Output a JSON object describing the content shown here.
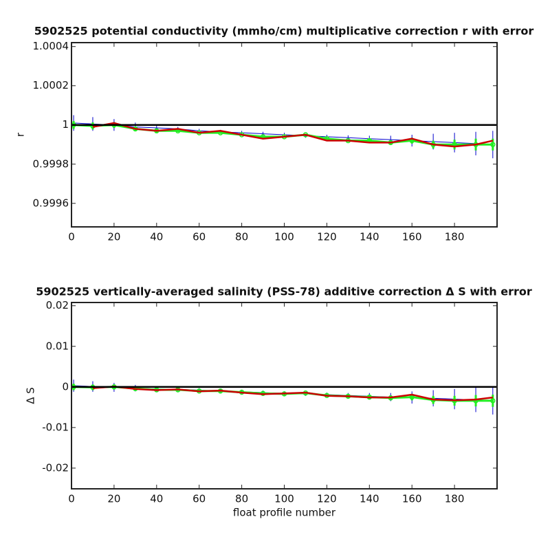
{
  "chart_data": [
    {
      "type": "errorbar",
      "title": "5902525 potential conductivity (mmho/cm) multiplicative correction r with error",
      "ylabel": "r",
      "x": [
        1,
        10,
        20,
        30,
        40,
        50,
        60,
        70,
        80,
        90,
        100,
        110,
        120,
        130,
        140,
        150,
        160,
        170,
        180,
        190,
        198
      ],
      "xlim": [
        0,
        200
      ],
      "xticks": [
        0,
        20,
        40,
        60,
        80,
        100,
        120,
        140,
        160,
        180
      ],
      "ylim": [
        0.99948,
        1.00042
      ],
      "yticks": [
        1.0004,
        1.0002,
        1,
        0.9998,
        0.9996
      ],
      "reference_line": {
        "value": 1,
        "color": "#000000"
      },
      "series": [
        {
          "color": "#0000cc",
          "values": [
            1.00001,
            1.000005,
            1.0,
            0.99999,
            0.999985,
            0.99998,
            0.99997,
            0.999965,
            0.99996,
            0.999955,
            0.99995,
            0.999945,
            0.99994,
            0.999935,
            0.99993,
            0.999925,
            0.99992,
            0.999915,
            0.99991,
            0.999905,
            0.9999
          ],
          "errors": [
            4e-05,
            3.5e-05,
            3e-05,
            2.2e-05,
            1.5e-05,
            1e-05,
            1e-05,
            1e-05,
            1e-05,
            1e-05,
            1e-05,
            1e-05,
            1e-05,
            1.2e-05,
            1.5e-05,
            2e-05,
            3e-05,
            4e-05,
            5e-05,
            6e-05,
            7e-05
          ]
        },
        {
          "color": "#22ee22",
          "values": [
            1.0,
            0.999995,
            1.0,
            0.99998,
            0.99997,
            0.99997,
            0.99996,
            0.99996,
            0.99995,
            0.99994,
            0.99994,
            0.99995,
            0.99993,
            0.99992,
            0.99992,
            0.99991,
            0.99992,
            0.9999,
            0.9999,
            0.9999,
            0.9999
          ],
          "errors": [
            2e-05,
            1.8e-05,
            1.5e-05,
            1e-05,
            8e-06,
            6e-06,
            5e-06,
            5e-06,
            5e-06,
            5e-06,
            5e-06,
            5e-06,
            5e-06,
            6e-06,
            8e-06,
            1e-05,
            1.5e-05,
            2e-05,
            2.5e-05,
            3e-05,
            3e-05
          ]
        },
        {
          "color": "#cc0000",
          "values": [
            null,
            0.99999,
            1.00001,
            0.99998,
            0.99997,
            0.99998,
            0.99996,
            0.99997,
            0.99995,
            0.99993,
            0.99994,
            0.99995,
            0.99992,
            0.99992,
            0.99991,
            0.99991,
            0.99993,
            0.9999,
            0.99989,
            0.9999,
            0.99992
          ]
        }
      ]
    },
    {
      "type": "errorbar",
      "title": "5902525 vertically-averaged salinity (PSS-78) additive correction Δ S with error",
      "ylabel": "Δ S",
      "xlabel": "float profile number",
      "x": [
        1,
        10,
        20,
        30,
        40,
        50,
        60,
        70,
        80,
        90,
        100,
        110,
        120,
        130,
        140,
        150,
        160,
        170,
        180,
        190,
        198
      ],
      "xlim": [
        0,
        200
      ],
      "xticks": [
        0,
        20,
        40,
        60,
        80,
        100,
        120,
        140,
        160,
        180
      ],
      "ylim": [
        -0.0251,
        0.0208
      ],
      "yticks": [
        0.02,
        0.01,
        0,
        -0.01,
        -0.02
      ],
      "reference_line": {
        "value": 0,
        "color": "#000000"
      },
      "series": [
        {
          "color": "#0000cc",
          "values": [
            0.0003,
            0.0001,
            -0.0001,
            -0.0003,
            -0.0005,
            -0.0006,
            -0.0008,
            -0.001,
            -0.0012,
            -0.0014,
            -0.0016,
            -0.0017,
            -0.0019,
            -0.0021,
            -0.0023,
            -0.0025,
            -0.0026,
            -0.0028,
            -0.003,
            -0.0032,
            -0.0033
          ],
          "errors": [
            0.0015,
            0.0013,
            0.0011,
            0.0008,
            0.0006,
            0.0005,
            0.0005,
            0.0005,
            0.0005,
            0.0005,
            0.0005,
            0.0005,
            0.0005,
            0.0006,
            0.0008,
            0.001,
            0.0015,
            0.002,
            0.0025,
            0.003,
            0.0035
          ]
        },
        {
          "color": "#22ee22",
          "values": [
            0.0,
            -0.0001,
            0.0,
            -0.0004,
            -0.0007,
            -0.0007,
            -0.001,
            -0.001,
            -0.0013,
            -0.0016,
            -0.0017,
            -0.0015,
            -0.0021,
            -0.0023,
            -0.0025,
            -0.0027,
            -0.0025,
            -0.0032,
            -0.0034,
            -0.0034,
            -0.0034
          ],
          "errors": [
            0.0008,
            0.0007,
            0.0006,
            0.0004,
            0.0003,
            0.0003,
            0.0003,
            0.0003,
            0.0003,
            0.0003,
            0.0003,
            0.0003,
            0.0003,
            0.0004,
            0.0005,
            0.0006,
            0.0008,
            0.001,
            0.0012,
            0.0014,
            0.0015
          ]
        },
        {
          "color": "#cc0000",
          "values": [
            null,
            -0.0003,
            0.0001,
            -0.0005,
            -0.0008,
            -0.0006,
            -0.0011,
            -0.0009,
            -0.0014,
            -0.0018,
            -0.0016,
            -0.0014,
            -0.0022,
            -0.0023,
            -0.0026,
            -0.0026,
            -0.0019,
            -0.0031,
            -0.0033,
            -0.0031,
            -0.0026
          ]
        }
      ]
    }
  ]
}
